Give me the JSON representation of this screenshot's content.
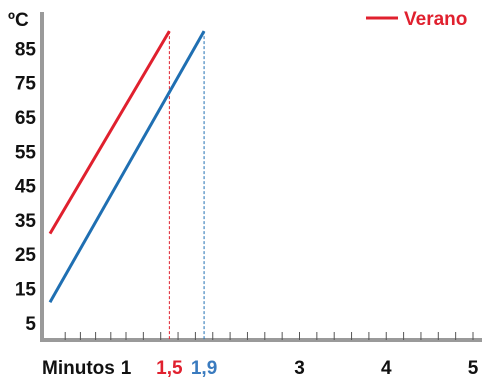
{
  "chart_data": {
    "type": "line",
    "ylabel": "ºC",
    "xlabel": "Minutos",
    "ylim": [
      0,
      95
    ],
    "xlim": [
      0,
      5
    ],
    "y_ticks": [
      "5",
      "15",
      "25",
      "35",
      "45",
      "55",
      "65",
      "75",
      "85"
    ],
    "x_tick_labels": [
      {
        "value": 1,
        "label": "1",
        "color": "#111111"
      },
      {
        "value": 1.5,
        "label": "1,5",
        "color": "#e0202e"
      },
      {
        "value": 1.9,
        "label": "1,9",
        "color": "#3a7bbf"
      },
      {
        "value": 3,
        "label": "3",
        "color": "#111111"
      },
      {
        "value": 4,
        "label": "4",
        "color": "#111111"
      },
      {
        "value": 5,
        "label": "5",
        "color": "#111111"
      }
    ],
    "series": [
      {
        "name": "Verano",
        "color": "#e0202e",
        "x": [
          0,
          1.5
        ],
        "y": [
          31,
          90
        ],
        "drop_line_x": 1.5
      },
      {
        "name": "",
        "color": "#1f6fb2",
        "x": [
          0,
          1.9
        ],
        "y": [
          11,
          90
        ],
        "drop_line_x": 1.9
      }
    ],
    "legend_position": "top-right",
    "grid": false
  }
}
